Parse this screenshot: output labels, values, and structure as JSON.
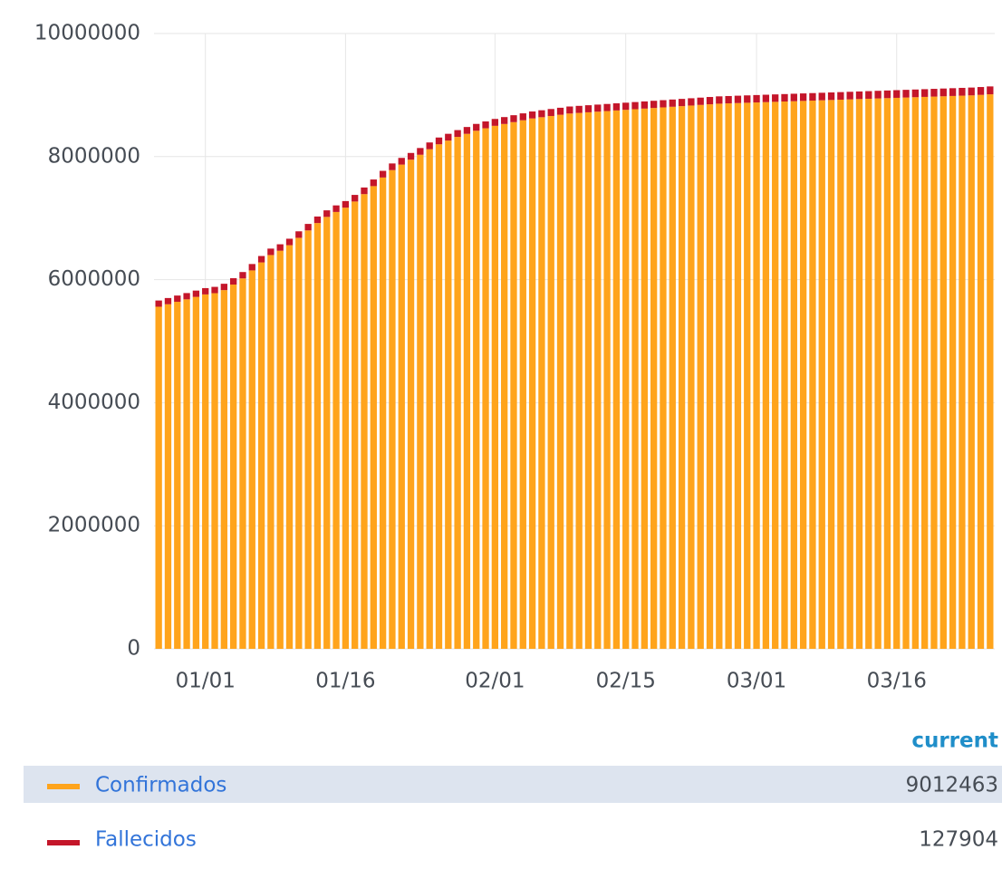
{
  "chart_data": {
    "type": "stacked_bar",
    "categories": [
      null,
      null,
      null,
      null,
      null,
      "01/01",
      null,
      null,
      null,
      null,
      null,
      null,
      null,
      null,
      null,
      null,
      null,
      null,
      null,
      null,
      "01/16",
      null,
      null,
      null,
      null,
      null,
      null,
      null,
      null,
      null,
      null,
      null,
      null,
      null,
      null,
      null,
      "02/01",
      null,
      null,
      null,
      null,
      null,
      null,
      null,
      null,
      null,
      null,
      null,
      null,
      null,
      "02/15",
      null,
      null,
      null,
      null,
      null,
      null,
      null,
      null,
      null,
      null,
      null,
      null,
      null,
      "03/01",
      null,
      null,
      null,
      null,
      null,
      null,
      null,
      null,
      null,
      null,
      null,
      null,
      null,
      null,
      "03/16",
      null,
      null,
      null,
      null,
      null,
      null,
      null,
      null,
      null,
      null
    ],
    "series": [
      {
        "name": "Confirmados",
        "color": "#ffa41c",
        "values": [
          5560000,
          5600000,
          5640000,
          5680000,
          5720000,
          5760000,
          5780000,
          5830000,
          5920000,
          6020000,
          6150000,
          6280000,
          6400000,
          6470000,
          6560000,
          6680000,
          6800000,
          6920000,
          7020000,
          7100000,
          7170000,
          7270000,
          7390000,
          7520000,
          7660000,
          7780000,
          7870000,
          7950000,
          8030000,
          8120000,
          8200000,
          8260000,
          8320000,
          8370000,
          8420000,
          8460000,
          8500000,
          8530000,
          8560000,
          8590000,
          8620000,
          8640000,
          8660000,
          8680000,
          8700000,
          8710000,
          8720000,
          8730000,
          8740000,
          8750000,
          8760000,
          8770000,
          8780000,
          8790000,
          8800000,
          8810000,
          8820000,
          8830000,
          8840000,
          8850000,
          8860000,
          8865000,
          8870000,
          8875000,
          8880000,
          8885000,
          8890000,
          8895000,
          8900000,
          8905000,
          8910000,
          8915000,
          8920000,
          8925000,
          8930000,
          8935000,
          8940000,
          8945000,
          8950000,
          8955000,
          8960000,
          8965000,
          8970000,
          8975000,
          8980000,
          8985000,
          8990000,
          8995000,
          9003000,
          9012463
        ]
      },
      {
        "name": "Fallecidos",
        "color": "#c4162a",
        "values": [
          101000,
          101300,
          101600,
          101900,
          102200,
          102500,
          102800,
          103100,
          103400,
          103700,
          104000,
          104300,
          104600,
          104900,
          105200,
          105500,
          105800,
          106100,
          106400,
          106700,
          107000,
          107300,
          107600,
          107900,
          108200,
          108500,
          108800,
          109100,
          109400,
          109700,
          110000,
          110300,
          110600,
          110900,
          111200,
          111500,
          111800,
          112100,
          112400,
          112700,
          113000,
          113300,
          113600,
          113900,
          114200,
          114500,
          114800,
          115100,
          115400,
          115700,
          116000,
          116300,
          116600,
          116900,
          117200,
          117500,
          117800,
          118100,
          118400,
          118700,
          119000,
          119300,
          119600,
          119900,
          120200,
          120500,
          120800,
          121100,
          121400,
          121700,
          122000,
          122300,
          122600,
          122900,
          123200,
          123500,
          123800,
          124100,
          124400,
          124700,
          125000,
          125300,
          125600,
          125900,
          126200,
          126500,
          126800,
          127100,
          127400,
          127904
        ]
      }
    ],
    "ylim": [
      0,
      10000000
    ],
    "yticks": [
      0,
      2000000,
      4000000,
      6000000,
      8000000,
      10000000
    ],
    "grid": true,
    "legend_header": "current"
  }
}
